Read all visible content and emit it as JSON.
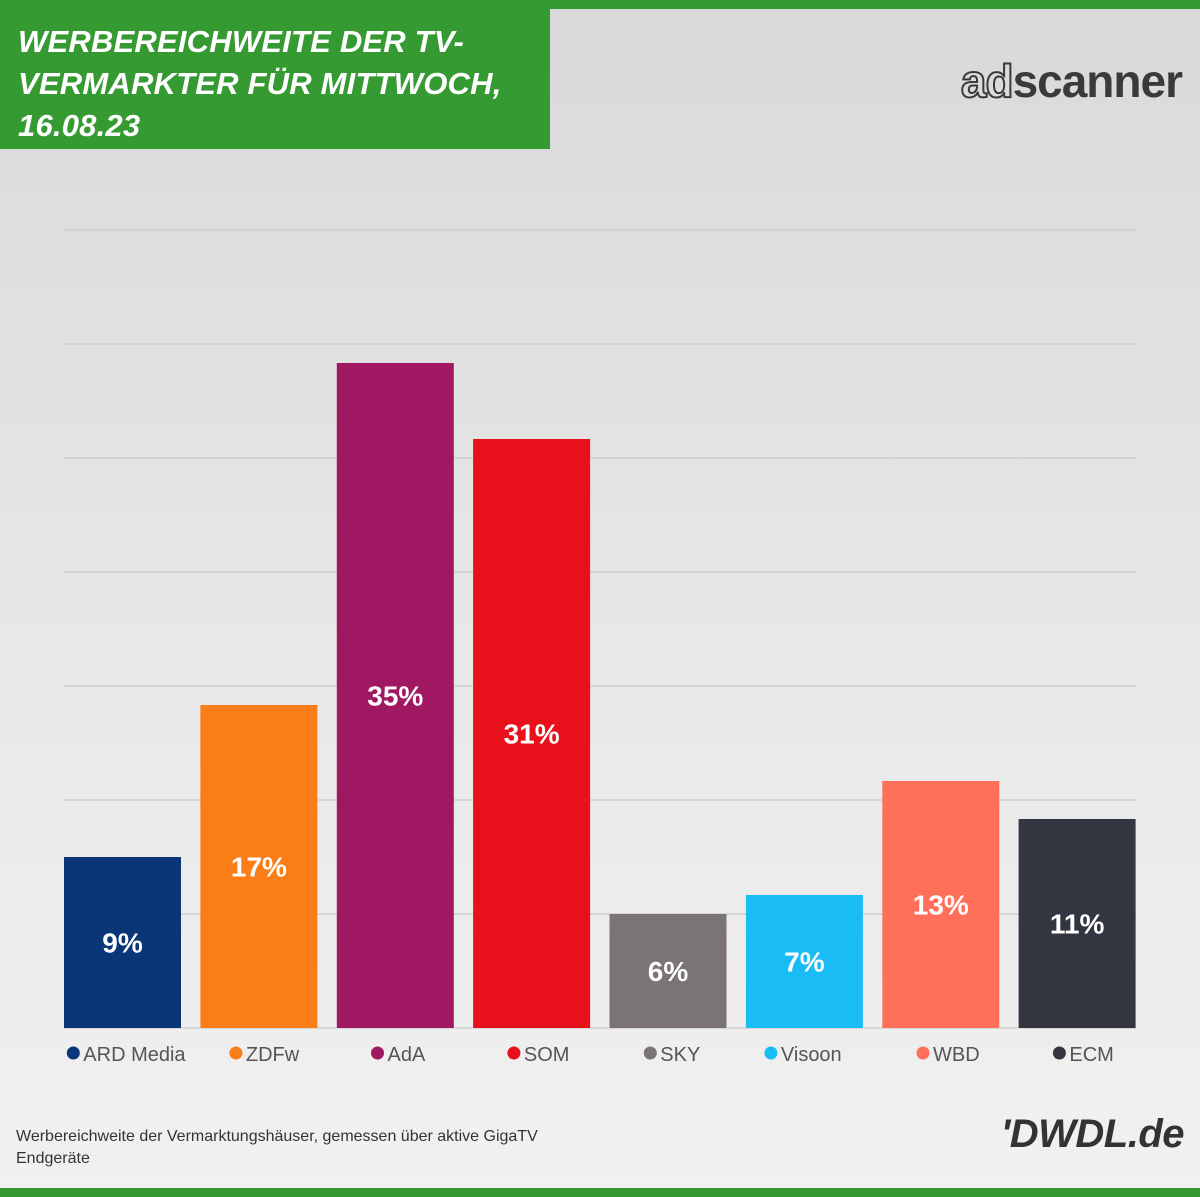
{
  "header": {
    "title_lines": [
      "WERBEREICHWEITE DER TV-",
      "VERMARKTER FÜR MITTWOCH,",
      "16.08.23"
    ],
    "brand_logo_a": "ad",
    "brand_logo_b": "scanner"
  },
  "chart_data": {
    "type": "bar",
    "title": "WERBEREICHWEITE DER TV-VERMARKTER FÜR MITTWOCH, 16.08.23",
    "categories": [
      "ARD Media",
      "ZDFw",
      "AdA",
      "SOM",
      "SKY",
      "Visoon",
      "WBD",
      "ECM"
    ],
    "values": [
      9,
      17,
      35,
      31,
      6,
      7,
      13,
      11
    ],
    "value_labels": [
      "9%",
      "17%",
      "35%",
      "31%",
      "6%",
      "7%",
      "13%",
      "11%"
    ],
    "colors": [
      "#0a3678",
      "#fa7d18",
      "#a01762",
      "#e8101b",
      "#7a7474",
      "#1abcf5",
      "#ff705a",
      "#333640"
    ],
    "ylim": [
      0,
      42
    ],
    "grid": true,
    "legend": "bottom",
    "xlabel": "",
    "ylabel": ""
  },
  "footer": {
    "note_lines": [
      "Werbereichweite der Vermarktungshäuser, gemessen über aktive GigaTV",
      "Endgeräte"
    ],
    "source_logo": "'DWDL.de"
  }
}
